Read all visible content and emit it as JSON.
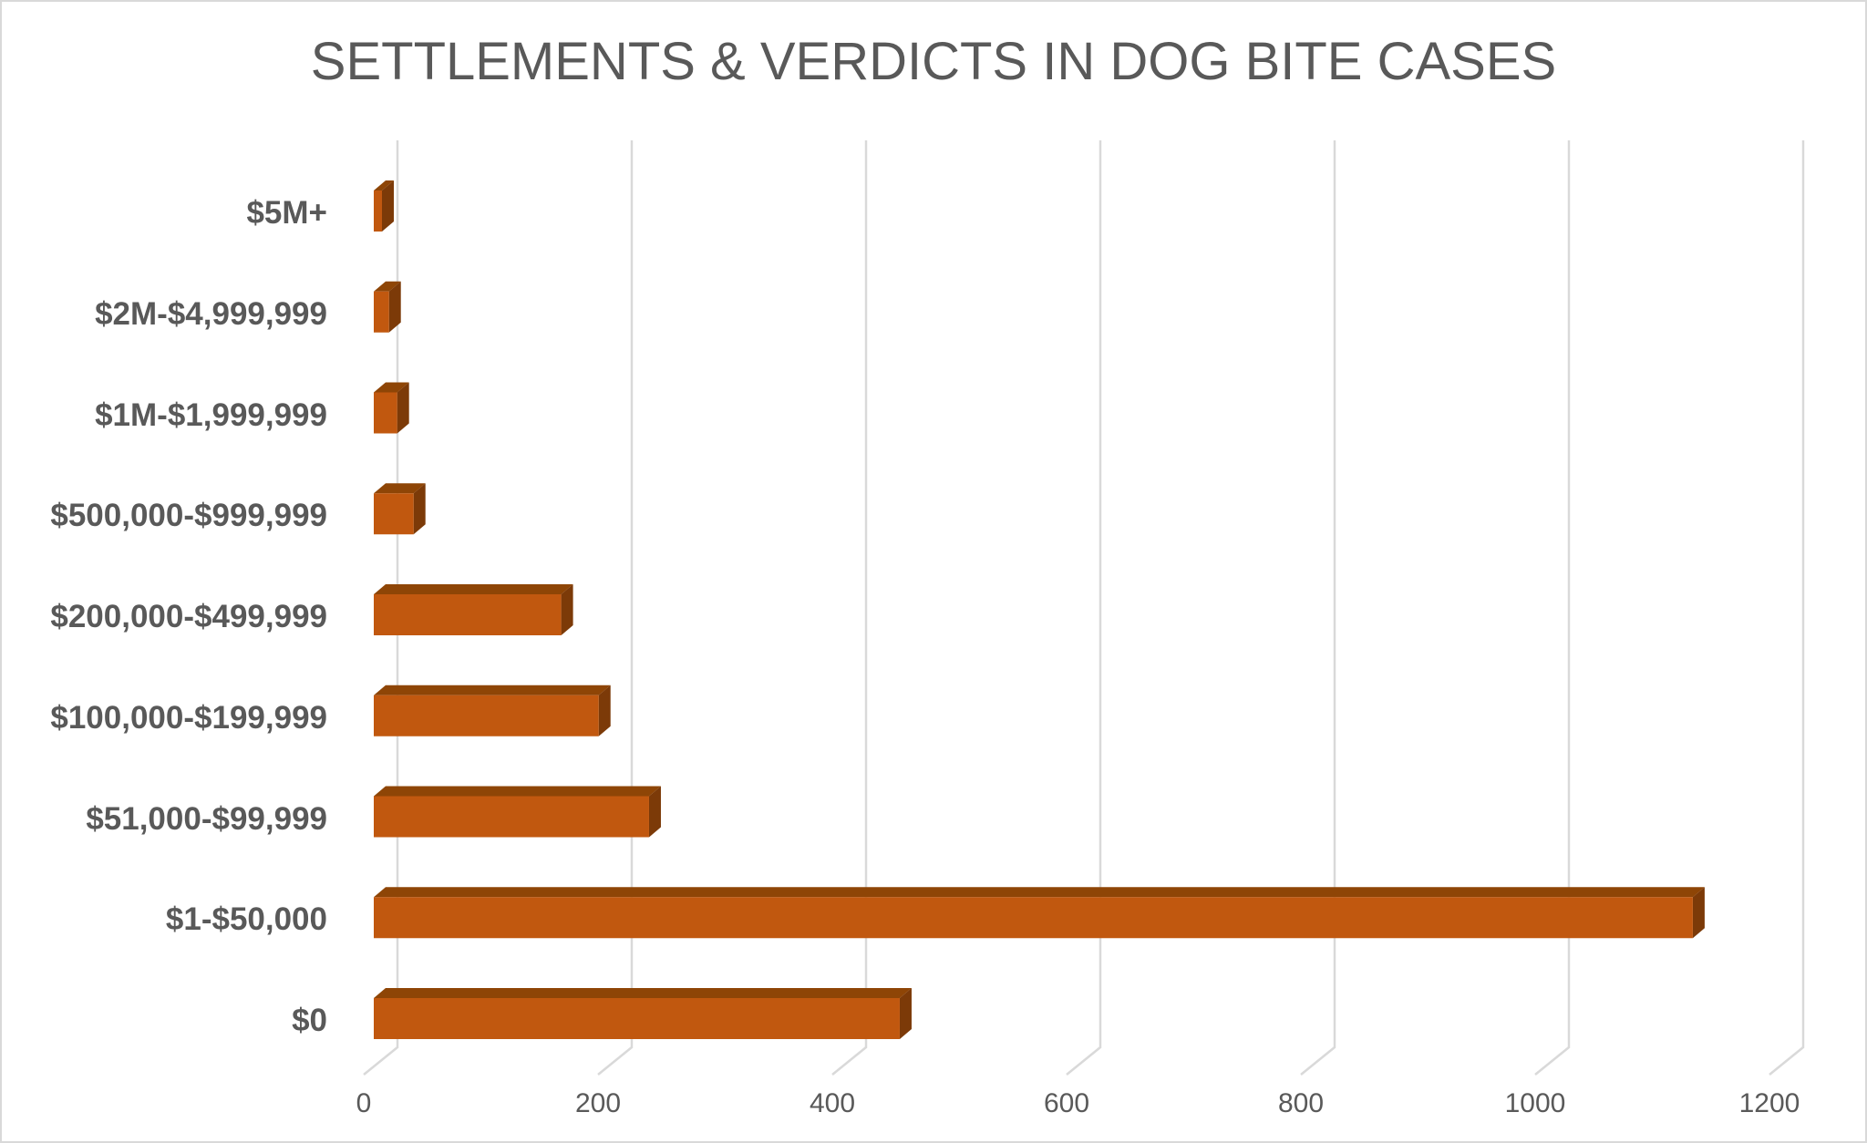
{
  "chart_data": {
    "type": "bar",
    "orientation": "horizontal",
    "style": "3d-box",
    "title": "SETTLEMENTS & VERDICTS IN DOG BITE CASES",
    "categories": [
      "$5M+",
      "$2M-$4,999,999",
      "$1M-$1,999,999",
      "$500,000-$999,999",
      "$200,000-$499,999",
      "$100,000-$199,999",
      "$51,000-$99,999",
      "$1-$50,000",
      "$0"
    ],
    "values": [
      7,
      13,
      20,
      34,
      160,
      192,
      235,
      1126,
      449
    ],
    "xticks": [
      0,
      200,
      400,
      600,
      800,
      1000,
      1200
    ],
    "xlim": [
      0,
      1200
    ],
    "xlabel": "",
    "ylabel": "",
    "grid": true,
    "legend": false,
    "colors": {
      "bar_front": "#C1580F",
      "bar_top": "#8E4506",
      "bar_side": "#7C3A08",
      "gridline": "#D9D9D9",
      "text": "#595959",
      "title_text": "#595959",
      "background": "#FFFFFF",
      "frame_border": "#D9D9D9"
    }
  }
}
